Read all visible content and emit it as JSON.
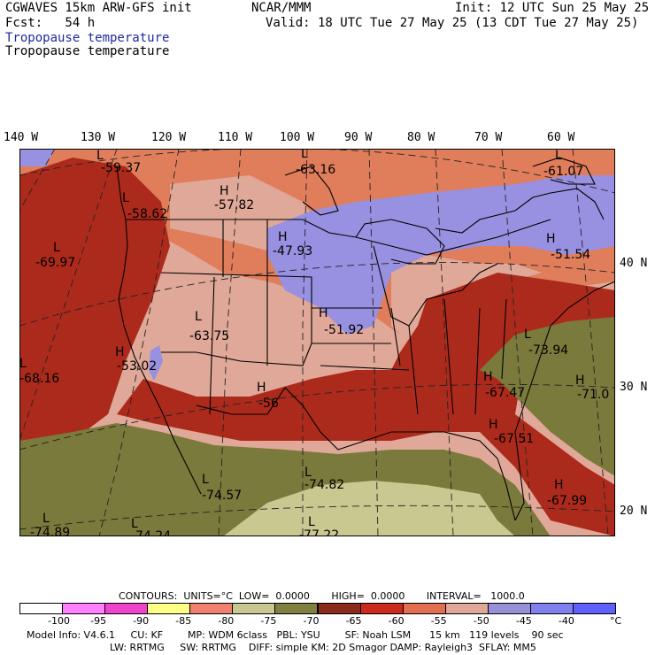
{
  "header": {
    "title_left": "CGWAVES 15km ARW-GFS init",
    "title_center": "NCAR/MMM",
    "init": "Init: 12 UTC Sun 25 May 25",
    "fcst": "Fcst:   54 h",
    "valid": "Valid: 18 UTC Tue 27 May 25 (13 CDT Tue 27 May 25)",
    "field_colored": "Tropopause temperature",
    "field_contour": "Tropopause temperature"
  },
  "axes": {
    "longitudes": [
      "140 W",
      "130 W",
      "120 W",
      "110 W",
      "100 W",
      "90 W",
      "80 W",
      "70 W",
      "60 W"
    ],
    "latitudes": [
      "40 N",
      "30 N",
      "20 N"
    ]
  },
  "markers": [
    {
      "letter": "L",
      "value": "-59.37"
    },
    {
      "letter": "L",
      "value": "-58.62"
    },
    {
      "letter": "H",
      "value": "-57.82"
    },
    {
      "letter": "L",
      "value": "-63.16"
    },
    {
      "letter": "L",
      "value": "-61.07"
    },
    {
      "letter": "L",
      "value": "-69.97"
    },
    {
      "letter": "H",
      "value": "-47.93"
    },
    {
      "letter": "H",
      "value": "-51.54"
    },
    {
      "letter": "L",
      "value": "-63.75"
    },
    {
      "letter": "H",
      "value": "-51.92"
    },
    {
      "letter": "H",
      "value": "-53.02"
    },
    {
      "letter": "L",
      "value": "-68.16"
    },
    {
      "letter": "L",
      "value": "-73.94"
    },
    {
      "letter": "H",
      "value": "-56"
    },
    {
      "letter": "H",
      "value": "-67.47"
    },
    {
      "letter": "H",
      "value": "-71.0"
    },
    {
      "letter": "H",
      "value": "-67.51"
    },
    {
      "letter": "L",
      "value": "-74.57"
    },
    {
      "letter": "L",
      "value": "-74.82"
    },
    {
      "letter": "H",
      "value": "-67.99"
    },
    {
      "letter": "L",
      "value": "-74.89"
    },
    {
      "letter": "L",
      "value": "-74.24"
    },
    {
      "letter": "L",
      "value": "-77.22"
    }
  ],
  "contours_line": "CONTOURS:  UNITS=°C  LOW=  0.0000       HIGH=  0.0000       INTERVAL=   1000.0",
  "legend": {
    "colors": [
      "#ffffff",
      "#ff80ff",
      "#ee44cc",
      "#ffff88",
      "#f08070",
      "#c8c890",
      "#808040",
      "#8c2a1c",
      "#cc2a1c",
      "#e07050",
      "#e0a898",
      "#9890d8",
      "#8080ee",
      "#6060ff"
    ],
    "labels": [
      "-100",
      "-95",
      "-90",
      "-85",
      "-80",
      "-75",
      "-70",
      "-65",
      "-60",
      "-55",
      "-50",
      "-45",
      "-40",
      "°C"
    ]
  },
  "info": {
    "line1": "Model Info: V4.6.1     CU: KF        MP: WDM 6class   PBL: YSU        SF: Noah LSM      15 km   119 levels    90 sec",
    "line2": "LW: RRTMG     SW: RRTMG    DIFF: simple KM: 2D Smagor DAMP: Rayleigh3  SFLAY: MM5"
  },
  "colors": {
    "purple": "#9890e0",
    "salmon": "#e0a898",
    "orange": "#e07e5c",
    "red": "#ac2a1c",
    "olive": "#7a7a3c",
    "khaki": "#c8c890"
  }
}
